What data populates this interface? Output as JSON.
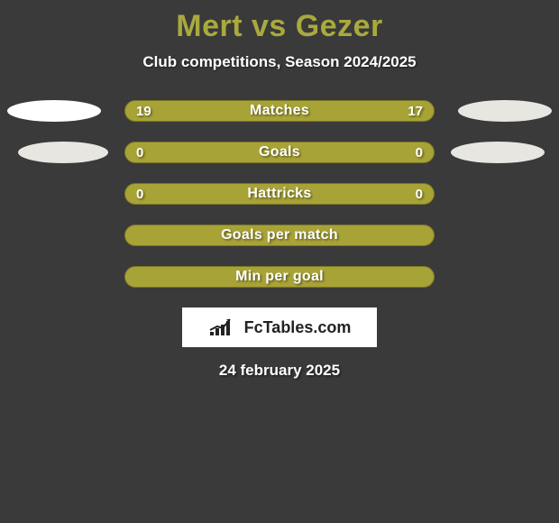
{
  "colors": {
    "background": "#3a3a3a",
    "title": "#a9a93e",
    "bar_fill": "#a8a336",
    "bar_border": "#7a7626",
    "ellipse_left_top": "#ffffff",
    "ellipse_left_bottom": "#e8e6e1",
    "ellipse_right_top": "#e8e6e1",
    "ellipse_right_bottom": "#e8e6e1"
  },
  "header": {
    "title": "Mert vs Gezer",
    "subtitle": "Club competitions, Season 2024/2025"
  },
  "rows": [
    {
      "label": "Matches",
      "left_value": "19",
      "right_value": "17",
      "show_ellipse_left": true,
      "show_ellipse_right": true,
      "ellipse_left_color_key": "ellipse_left_top",
      "ellipse_right_color_key": "ellipse_right_top",
      "ellipse_left_w": 104,
      "ellipse_left_h": 24,
      "ellipse_right_w": 104,
      "ellipse_right_h": 24
    },
    {
      "label": "Goals",
      "left_value": "0",
      "right_value": "0",
      "show_ellipse_left": true,
      "show_ellipse_right": true,
      "ellipse_left_color_key": "ellipse_left_bottom",
      "ellipse_right_color_key": "ellipse_right_bottom",
      "ellipse_left_w": 100,
      "ellipse_left_h": 24,
      "ellipse_right_w": 104,
      "ellipse_right_h": 24
    },
    {
      "label": "Hattricks",
      "left_value": "0",
      "right_value": "0",
      "show_ellipse_left": false,
      "show_ellipse_right": false
    },
    {
      "label": "Goals per match",
      "left_value": "",
      "right_value": "",
      "show_ellipse_left": false,
      "show_ellipse_right": false
    },
    {
      "label": "Min per goal",
      "left_value": "",
      "right_value": "",
      "show_ellipse_left": false,
      "show_ellipse_right": false
    }
  ],
  "logo": {
    "text": "FcTables.com"
  },
  "date": "24 february 2025"
}
